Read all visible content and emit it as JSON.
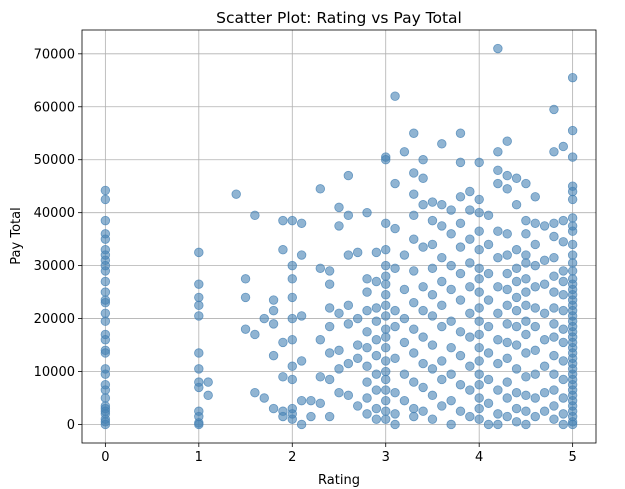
{
  "chart_data": {
    "type": "scatter",
    "title": "Scatter Plot: Rating vs Pay Total",
    "xlabel": "Rating",
    "ylabel": "Pay Total",
    "xlim": [
      -0.25,
      5.25
    ],
    "ylim": [
      -3500,
      74500
    ],
    "xticks": [
      0,
      1,
      2,
      3,
      4,
      5
    ],
    "yticks": [
      0,
      10000,
      20000,
      30000,
      40000,
      50000,
      60000,
      70000
    ],
    "grid": true,
    "marker_color": "#4682b4",
    "marker_opacity": 0.6,
    "points": [
      [
        0,
        44200
      ],
      [
        0,
        42500
      ],
      [
        0,
        38500
      ],
      [
        0,
        36000
      ],
      [
        0,
        35000
      ],
      [
        0,
        33000
      ],
      [
        0,
        32000
      ],
      [
        0,
        31000
      ],
      [
        0,
        30000
      ],
      [
        0,
        29000
      ],
      [
        0,
        27000
      ],
      [
        0,
        25000
      ],
      [
        0,
        23500
      ],
      [
        0,
        23000
      ],
      [
        0,
        21000
      ],
      [
        0,
        19500
      ],
      [
        0,
        17000
      ],
      [
        0,
        16000
      ],
      [
        0,
        14000
      ],
      [
        0,
        13500
      ],
      [
        0,
        10500
      ],
      [
        0,
        9500
      ],
      [
        0,
        7500
      ],
      [
        0,
        6500
      ],
      [
        0,
        5000
      ],
      [
        0,
        3500
      ],
      [
        0,
        3000
      ],
      [
        0,
        2500
      ],
      [
        0,
        2000
      ],
      [
        0,
        1000
      ],
      [
        0,
        500
      ],
      [
        0,
        0
      ],
      [
        1,
        32500
      ],
      [
        1,
        26500
      ],
      [
        1,
        24000
      ],
      [
        1,
        22500
      ],
      [
        1,
        20500
      ],
      [
        1,
        13500
      ],
      [
        1,
        10500
      ],
      [
        1,
        8000
      ],
      [
        1,
        7000
      ],
      [
        1,
        2500
      ],
      [
        1,
        1500
      ],
      [
        1,
        300
      ],
      [
        1,
        0
      ],
      [
        1.1,
        8000
      ],
      [
        1.1,
        5500
      ],
      [
        1.4,
        43500
      ],
      [
        1.5,
        27500
      ],
      [
        1.5,
        24000
      ],
      [
        1.5,
        18000
      ],
      [
        1.6,
        39500
      ],
      [
        1.6,
        17000
      ],
      [
        1.6,
        6000
      ],
      [
        1.7,
        20000
      ],
      [
        1.7,
        5000
      ],
      [
        1.8,
        23500
      ],
      [
        1.8,
        21500
      ],
      [
        1.8,
        19000
      ],
      [
        1.8,
        13000
      ],
      [
        1.8,
        3000
      ],
      [
        1.9,
        33000
      ],
      [
        1.9,
        38500
      ],
      [
        1.9,
        15500
      ],
      [
        1.9,
        9000
      ],
      [
        1.9,
        2500
      ],
      [
        1.9,
        1500
      ],
      [
        2,
        38500
      ],
      [
        2,
        30000
      ],
      [
        2,
        27500
      ],
      [
        2,
        24000
      ],
      [
        2,
        20000
      ],
      [
        2,
        16000
      ],
      [
        2,
        11000
      ],
      [
        2,
        8500
      ],
      [
        2,
        3000
      ],
      [
        2,
        2000
      ],
      [
        2,
        1000
      ],
      [
        2.1,
        38000
      ],
      [
        2.1,
        32000
      ],
      [
        2.1,
        20500
      ],
      [
        2.1,
        12000
      ],
      [
        2.1,
        4500
      ],
      [
        2.1,
        0
      ],
      [
        2.2,
        4500
      ],
      [
        2.2,
        1500
      ],
      [
        2.3,
        44500
      ],
      [
        2.3,
        29500
      ],
      [
        2.3,
        16000
      ],
      [
        2.3,
        9000
      ],
      [
        2.3,
        4000
      ],
      [
        2.4,
        29000
      ],
      [
        2.4,
        26500
      ],
      [
        2.4,
        22000
      ],
      [
        2.4,
        18500
      ],
      [
        2.4,
        13500
      ],
      [
        2.4,
        8500
      ],
      [
        2.4,
        1500
      ],
      [
        2.5,
        41000
      ],
      [
        2.5,
        37500
      ],
      [
        2.5,
        21000
      ],
      [
        2.5,
        14000
      ],
      [
        2.5,
        10500
      ],
      [
        2.5,
        6000
      ],
      [
        2.6,
        47000
      ],
      [
        2.6,
        39500
      ],
      [
        2.6,
        32000
      ],
      [
        2.6,
        22500
      ],
      [
        2.6,
        19000
      ],
      [
        2.6,
        11500
      ],
      [
        2.6,
        5500
      ],
      [
        2.7,
        32500
      ],
      [
        2.7,
        20000
      ],
      [
        2.7,
        15000
      ],
      [
        2.7,
        12500
      ],
      [
        2.7,
        3500
      ],
      [
        2.8,
        40000
      ],
      [
        2.8,
        27500
      ],
      [
        2.8,
        25000
      ],
      [
        2.8,
        21500
      ],
      [
        2.8,
        17500
      ],
      [
        2.8,
        14500
      ],
      [
        2.8,
        11000
      ],
      [
        2.8,
        8000
      ],
      [
        2.8,
        5000
      ],
      [
        2.8,
        2000
      ],
      [
        2.9,
        32500
      ],
      [
        2.9,
        27000
      ],
      [
        2.9,
        22000
      ],
      [
        2.9,
        19500
      ],
      [
        2.9,
        16000
      ],
      [
        2.9,
        13000
      ],
      [
        2.9,
        9500
      ],
      [
        2.9,
        6500
      ],
      [
        2.9,
        3000
      ],
      [
        2.9,
        1000
      ],
      [
        3,
        50500
      ],
      [
        3,
        50000
      ],
      [
        3,
        38000
      ],
      [
        3,
        33000
      ],
      [
        3,
        30000
      ],
      [
        3,
        28000
      ],
      [
        3,
        26500
      ],
      [
        3,
        24500
      ],
      [
        3,
        22500
      ],
      [
        3,
        20500
      ],
      [
        3,
        18000
      ],
      [
        3,
        16500
      ],
      [
        3,
        14500
      ],
      [
        3,
        12000
      ],
      [
        3,
        10000
      ],
      [
        3,
        8500
      ],
      [
        3,
        6500
      ],
      [
        3,
        4500
      ],
      [
        3,
        2500
      ],
      [
        3,
        1000
      ],
      [
        3.1,
        62000
      ],
      [
        3.1,
        45500
      ],
      [
        3.1,
        37000
      ],
      [
        3.1,
        29500
      ],
      [
        3.1,
        21500
      ],
      [
        3.1,
        18500
      ],
      [
        3.1,
        12500
      ],
      [
        3.1,
        6000
      ],
      [
        3.1,
        2000
      ],
      [
        3.1,
        0
      ],
      [
        3.2,
        51500
      ],
      [
        3.2,
        32000
      ],
      [
        3.2,
        25500
      ],
      [
        3.2,
        20000
      ],
      [
        3.2,
        15500
      ],
      [
        3.2,
        9500
      ],
      [
        3.2,
        4500
      ],
      [
        3.3,
        55000
      ],
      [
        3.3,
        47500
      ],
      [
        3.3,
        43500
      ],
      [
        3.3,
        39500
      ],
      [
        3.3,
        35000
      ],
      [
        3.3,
        29000
      ],
      [
        3.3,
        23000
      ],
      [
        3.3,
        18000
      ],
      [
        3.3,
        13500
      ],
      [
        3.3,
        8000
      ],
      [
        3.3,
        3000
      ],
      [
        3.3,
        1500
      ],
      [
        3.4,
        50000
      ],
      [
        3.4,
        46500
      ],
      [
        3.4,
        41500
      ],
      [
        3.4,
        33500
      ],
      [
        3.4,
        26000
      ],
      [
        3.4,
        21500
      ],
      [
        3.4,
        16500
      ],
      [
        3.4,
        11500
      ],
      [
        3.4,
        7000
      ],
      [
        3.4,
        2500
      ],
      [
        3.5,
        42000
      ],
      [
        3.5,
        38500
      ],
      [
        3.5,
        34000
      ],
      [
        3.5,
        29500
      ],
      [
        3.5,
        24500
      ],
      [
        3.5,
        20500
      ],
      [
        3.5,
        15000
      ],
      [
        3.5,
        10500
      ],
      [
        3.5,
        5500
      ],
      [
        3.5,
        1000
      ],
      [
        3.6,
        53000
      ],
      [
        3.6,
        41500
      ],
      [
        3.6,
        37500
      ],
      [
        3.6,
        31500
      ],
      [
        3.6,
        27000
      ],
      [
        3.6,
        22500
      ],
      [
        3.6,
        18500
      ],
      [
        3.6,
        12000
      ],
      [
        3.6,
        8500
      ],
      [
        3.6,
        3500
      ],
      [
        3.7,
        40500
      ],
      [
        3.7,
        36000
      ],
      [
        3.7,
        30000
      ],
      [
        3.7,
        25500
      ],
      [
        3.7,
        19500
      ],
      [
        3.7,
        14500
      ],
      [
        3.7,
        9500
      ],
      [
        3.7,
        4500
      ],
      [
        3.7,
        0
      ],
      [
        3.8,
        55000
      ],
      [
        3.8,
        49500
      ],
      [
        3.8,
        43000
      ],
      [
        3.8,
        38000
      ],
      [
        3.8,
        33500
      ],
      [
        3.8,
        28500
      ],
      [
        3.8,
        23500
      ],
      [
        3.8,
        17500
      ],
      [
        3.8,
        13000
      ],
      [
        3.8,
        7500
      ],
      [
        3.8,
        2500
      ],
      [
        3.9,
        44000
      ],
      [
        3.9,
        40500
      ],
      [
        3.9,
        35000
      ],
      [
        3.9,
        30500
      ],
      [
        3.9,
        26000
      ],
      [
        3.9,
        21000
      ],
      [
        3.9,
        16500
      ],
      [
        3.9,
        11000
      ],
      [
        3.9,
        6500
      ],
      [
        3.9,
        1500
      ],
      [
        4,
        49500
      ],
      [
        4,
        42500
      ],
      [
        4,
        40000
      ],
      [
        4,
        36500
      ],
      [
        4,
        33000
      ],
      [
        4,
        29500
      ],
      [
        4,
        27500
      ],
      [
        4,
        25000
      ],
      [
        4,
        22000
      ],
      [
        4,
        19500
      ],
      [
        4,
        17000
      ],
      [
        4,
        14500
      ],
      [
        4,
        12000
      ],
      [
        4,
        9500
      ],
      [
        4,
        7500
      ],
      [
        4,
        5000
      ],
      [
        4,
        3000
      ],
      [
        4,
        1000
      ],
      [
        4.1,
        39500
      ],
      [
        4.1,
        34000
      ],
      [
        4.1,
        28500
      ],
      [
        4.1,
        23500
      ],
      [
        4.1,
        18500
      ],
      [
        4.1,
        13500
      ],
      [
        4.1,
        8500
      ],
      [
        4.1,
        4000
      ],
      [
        4.1,
        0
      ],
      [
        4.2,
        71000
      ],
      [
        4.2,
        51500
      ],
      [
        4.2,
        48000
      ],
      [
        4.2,
        45500
      ],
      [
        4.2,
        36500
      ],
      [
        4.2,
        31500
      ],
      [
        4.2,
        26000
      ],
      [
        4.2,
        21000
      ],
      [
        4.2,
        16000
      ],
      [
        4.2,
        11500
      ],
      [
        4.2,
        6500
      ],
      [
        4.2,
        2000
      ],
      [
        4.2,
        0
      ],
      [
        4.3,
        53500
      ],
      [
        4.3,
        47000
      ],
      [
        4.3,
        44500
      ],
      [
        4.3,
        36000
      ],
      [
        4.3,
        32000
      ],
      [
        4.3,
        28500
      ],
      [
        4.3,
        25500
      ],
      [
        4.3,
        22500
      ],
      [
        4.3,
        19000
      ],
      [
        4.3,
        15500
      ],
      [
        4.3,
        12500
      ],
      [
        4.3,
        8000
      ],
      [
        4.3,
        5000
      ],
      [
        4.3,
        1500
      ],
      [
        4.4,
        46500
      ],
      [
        4.4,
        41500
      ],
      [
        4.4,
        33000
      ],
      [
        4.4,
        29500
      ],
      [
        4.4,
        27000
      ],
      [
        4.4,
        24000
      ],
      [
        4.4,
        21500
      ],
      [
        4.4,
        18500
      ],
      [
        4.4,
        15000
      ],
      [
        4.4,
        10500
      ],
      [
        4.4,
        6000
      ],
      [
        4.4,
        3000
      ],
      [
        4.4,
        500
      ],
      [
        4.5,
        45500
      ],
      [
        4.5,
        38500
      ],
      [
        4.5,
        36000
      ],
      [
        4.5,
        32000
      ],
      [
        4.5,
        30500
      ],
      [
        4.5,
        27500
      ],
      [
        4.5,
        25000
      ],
      [
        4.5,
        22500
      ],
      [
        4.5,
        19500
      ],
      [
        4.5,
        17000
      ],
      [
        4.5,
        13500
      ],
      [
        4.5,
        9000
      ],
      [
        4.5,
        5500
      ],
      [
        4.5,
        2500
      ],
      [
        4.5,
        0
      ],
      [
        4.6,
        43000
      ],
      [
        4.6,
        38000
      ],
      [
        4.6,
        34000
      ],
      [
        4.6,
        30000
      ],
      [
        4.6,
        26000
      ],
      [
        4.6,
        22000
      ],
      [
        4.6,
        18500
      ],
      [
        4.6,
        14000
      ],
      [
        4.6,
        9500
      ],
      [
        4.6,
        5000
      ],
      [
        4.6,
        1500
      ],
      [
        4.7,
        37500
      ],
      [
        4.7,
        31000
      ],
      [
        4.7,
        26500
      ],
      [
        4.7,
        21000
      ],
      [
        4.7,
        16000
      ],
      [
        4.7,
        11000
      ],
      [
        4.7,
        6000
      ],
      [
        4.7,
        2500
      ],
      [
        4.8,
        59500
      ],
      [
        4.8,
        51500
      ],
      [
        4.8,
        38000
      ],
      [
        4.8,
        35500
      ],
      [
        4.8,
        31500
      ],
      [
        4.8,
        28000
      ],
      [
        4.8,
        25000
      ],
      [
        4.8,
        22000
      ],
      [
        4.8,
        19000
      ],
      [
        4.8,
        16500
      ],
      [
        4.8,
        13000
      ],
      [
        4.8,
        9500
      ],
      [
        4.8,
        6500
      ],
      [
        4.8,
        3500
      ],
      [
        4.8,
        1000
      ],
      [
        4.9,
        52500
      ],
      [
        4.9,
        38500
      ],
      [
        4.9,
        34500
      ],
      [
        4.9,
        29000
      ],
      [
        4.9,
        27000
      ],
      [
        4.9,
        24500
      ],
      [
        4.9,
        21500
      ],
      [
        4.9,
        18000
      ],
      [
        4.9,
        15500
      ],
      [
        4.9,
        12000
      ],
      [
        4.9,
        8500
      ],
      [
        4.9,
        5000
      ],
      [
        4.9,
        2000
      ],
      [
        4.9,
        0
      ],
      [
        5,
        65500
      ],
      [
        5,
        55500
      ],
      [
        5,
        50500
      ],
      [
        5,
        45000
      ],
      [
        5,
        44000
      ],
      [
        5,
        42500
      ],
      [
        5,
        39000
      ],
      [
        5,
        37500
      ],
      [
        5,
        36500
      ],
      [
        5,
        34000
      ],
      [
        5,
        32000
      ],
      [
        5,
        30500
      ],
      [
        5,
        29000
      ],
      [
        5,
        27500
      ],
      [
        5,
        26500
      ],
      [
        5,
        25500
      ],
      [
        5,
        24500
      ],
      [
        5,
        23500
      ],
      [
        5,
        22500
      ],
      [
        5,
        21500
      ],
      [
        5,
        20500
      ],
      [
        5,
        19500
      ],
      [
        5,
        18500
      ],
      [
        5,
        17500
      ],
      [
        5,
        16500
      ],
      [
        5,
        15500
      ],
      [
        5,
        14500
      ],
      [
        5,
        13500
      ],
      [
        5,
        12500
      ],
      [
        5,
        11500
      ],
      [
        5,
        10500
      ],
      [
        5,
        9500
      ],
      [
        5,
        8500
      ],
      [
        5,
        7500
      ],
      [
        5,
        6500
      ],
      [
        5,
        5500
      ],
      [
        5,
        4500
      ],
      [
        5,
        3500
      ],
      [
        5,
        2500
      ],
      [
        5,
        1500
      ],
      [
        5,
        500
      ],
      [
        5,
        0
      ]
    ]
  }
}
